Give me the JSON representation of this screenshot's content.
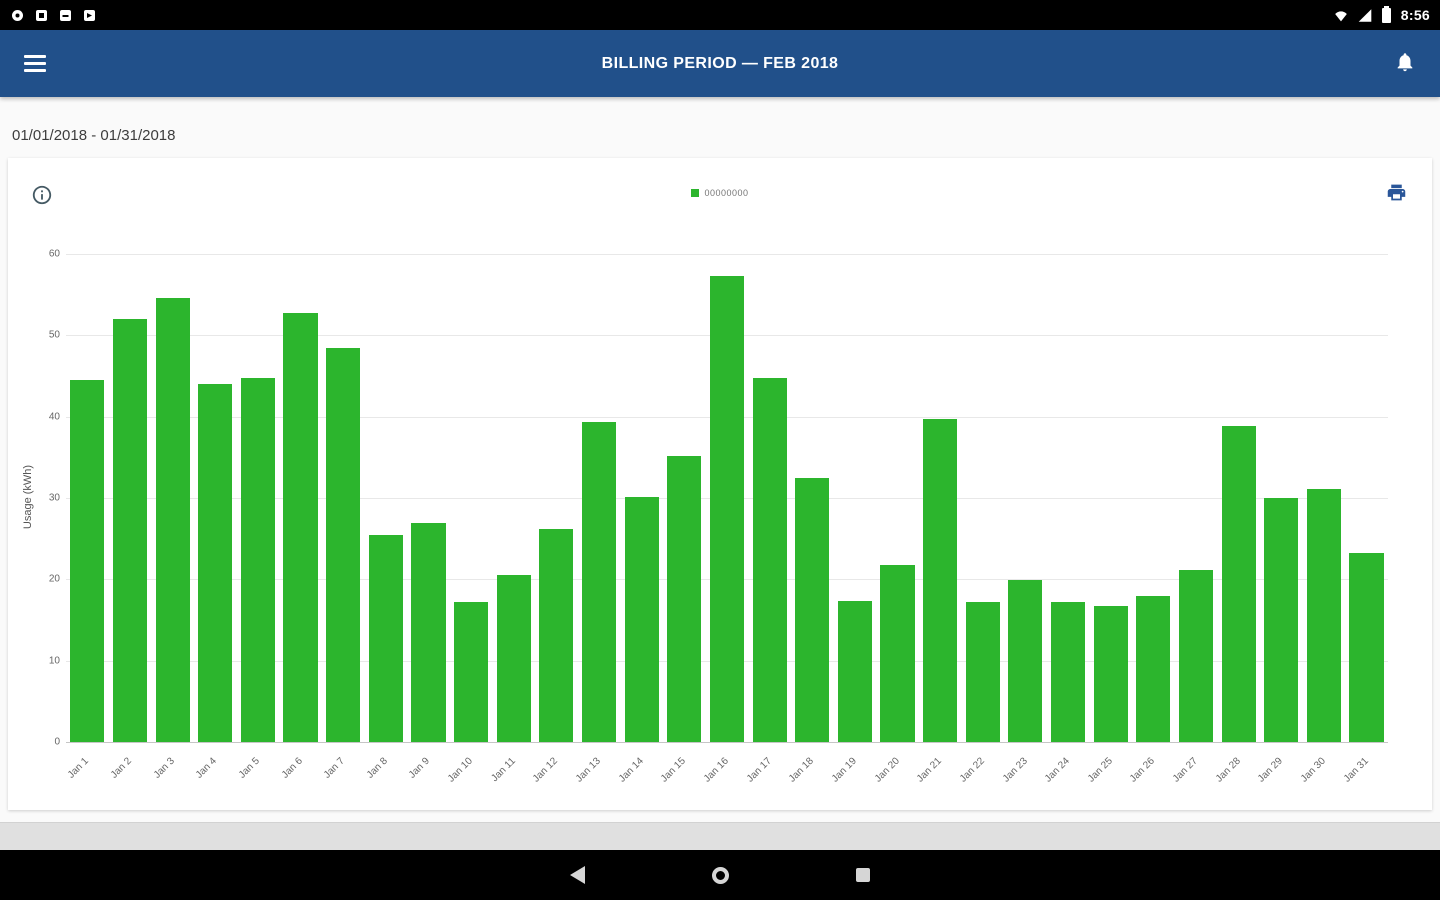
{
  "status_bar": {
    "time": "8:56",
    "left_icons": [
      "notification-circle-icon",
      "notification-app-icon",
      "notification-app-icon",
      "notification-app-icon"
    ],
    "right_icons": [
      "wifi-icon",
      "cell-signal-icon",
      "battery-icon"
    ]
  },
  "app_bar": {
    "title": "BILLING PERIOD — FEB 2018",
    "left_icon": "hamburger-menu-icon",
    "right_icon": "bell-icon"
  },
  "billing_period": {
    "date_range": "01/01/2018 - 01/31/2018"
  },
  "chart_header": {
    "icons": [
      "info-icon",
      "print-icon"
    ]
  },
  "chart_data": {
    "type": "bar",
    "title": "",
    "legend": [
      "00000000"
    ],
    "legend_position": "top-center",
    "xlabel": "",
    "ylabel": "Usage (kWh)",
    "ylim": [
      0,
      60
    ],
    "yticks": [
      0,
      10,
      20,
      30,
      40,
      50,
      60
    ],
    "grid": true,
    "categories": [
      "Jan 1",
      "Jan 2",
      "Jan 3",
      "Jan 4",
      "Jan 5",
      "Jan 6",
      "Jan 7",
      "Jan 8",
      "Jan 9",
      "Jan 10",
      "Jan 11",
      "Jan 12",
      "Jan 13",
      "Jan 14",
      "Jan 15",
      "Jan 16",
      "Jan 17",
      "Jan 18",
      "Jan 19",
      "Jan 20",
      "Jan 21",
      "Jan 22",
      "Jan 23",
      "Jan 24",
      "Jan 25",
      "Jan 26",
      "Jan 27",
      "Jan 28",
      "Jan 29",
      "Jan 30",
      "Jan 31"
    ],
    "values": [
      44.5,
      52.0,
      54.6,
      44.0,
      44.8,
      52.8,
      48.4,
      25.5,
      26.9,
      17.2,
      20.5,
      26.2,
      39.4,
      30.1,
      35.2,
      57.3,
      44.8,
      32.4,
      17.3,
      21.8,
      39.7,
      17.2,
      19.9,
      17.2,
      16.7,
      18.0,
      21.2,
      38.8,
      30.0,
      31.1,
      23.3
    ]
  },
  "nav_bar": {
    "buttons": [
      "back-button",
      "home-button",
      "recents-button"
    ]
  },
  "colors": {
    "app_bar_blue": "#21508A",
    "bar_green": "#2CB52D",
    "status_bar_black": "#000000",
    "nav_bar_black": "#000000",
    "content_bg": "#FAFAFA"
  }
}
